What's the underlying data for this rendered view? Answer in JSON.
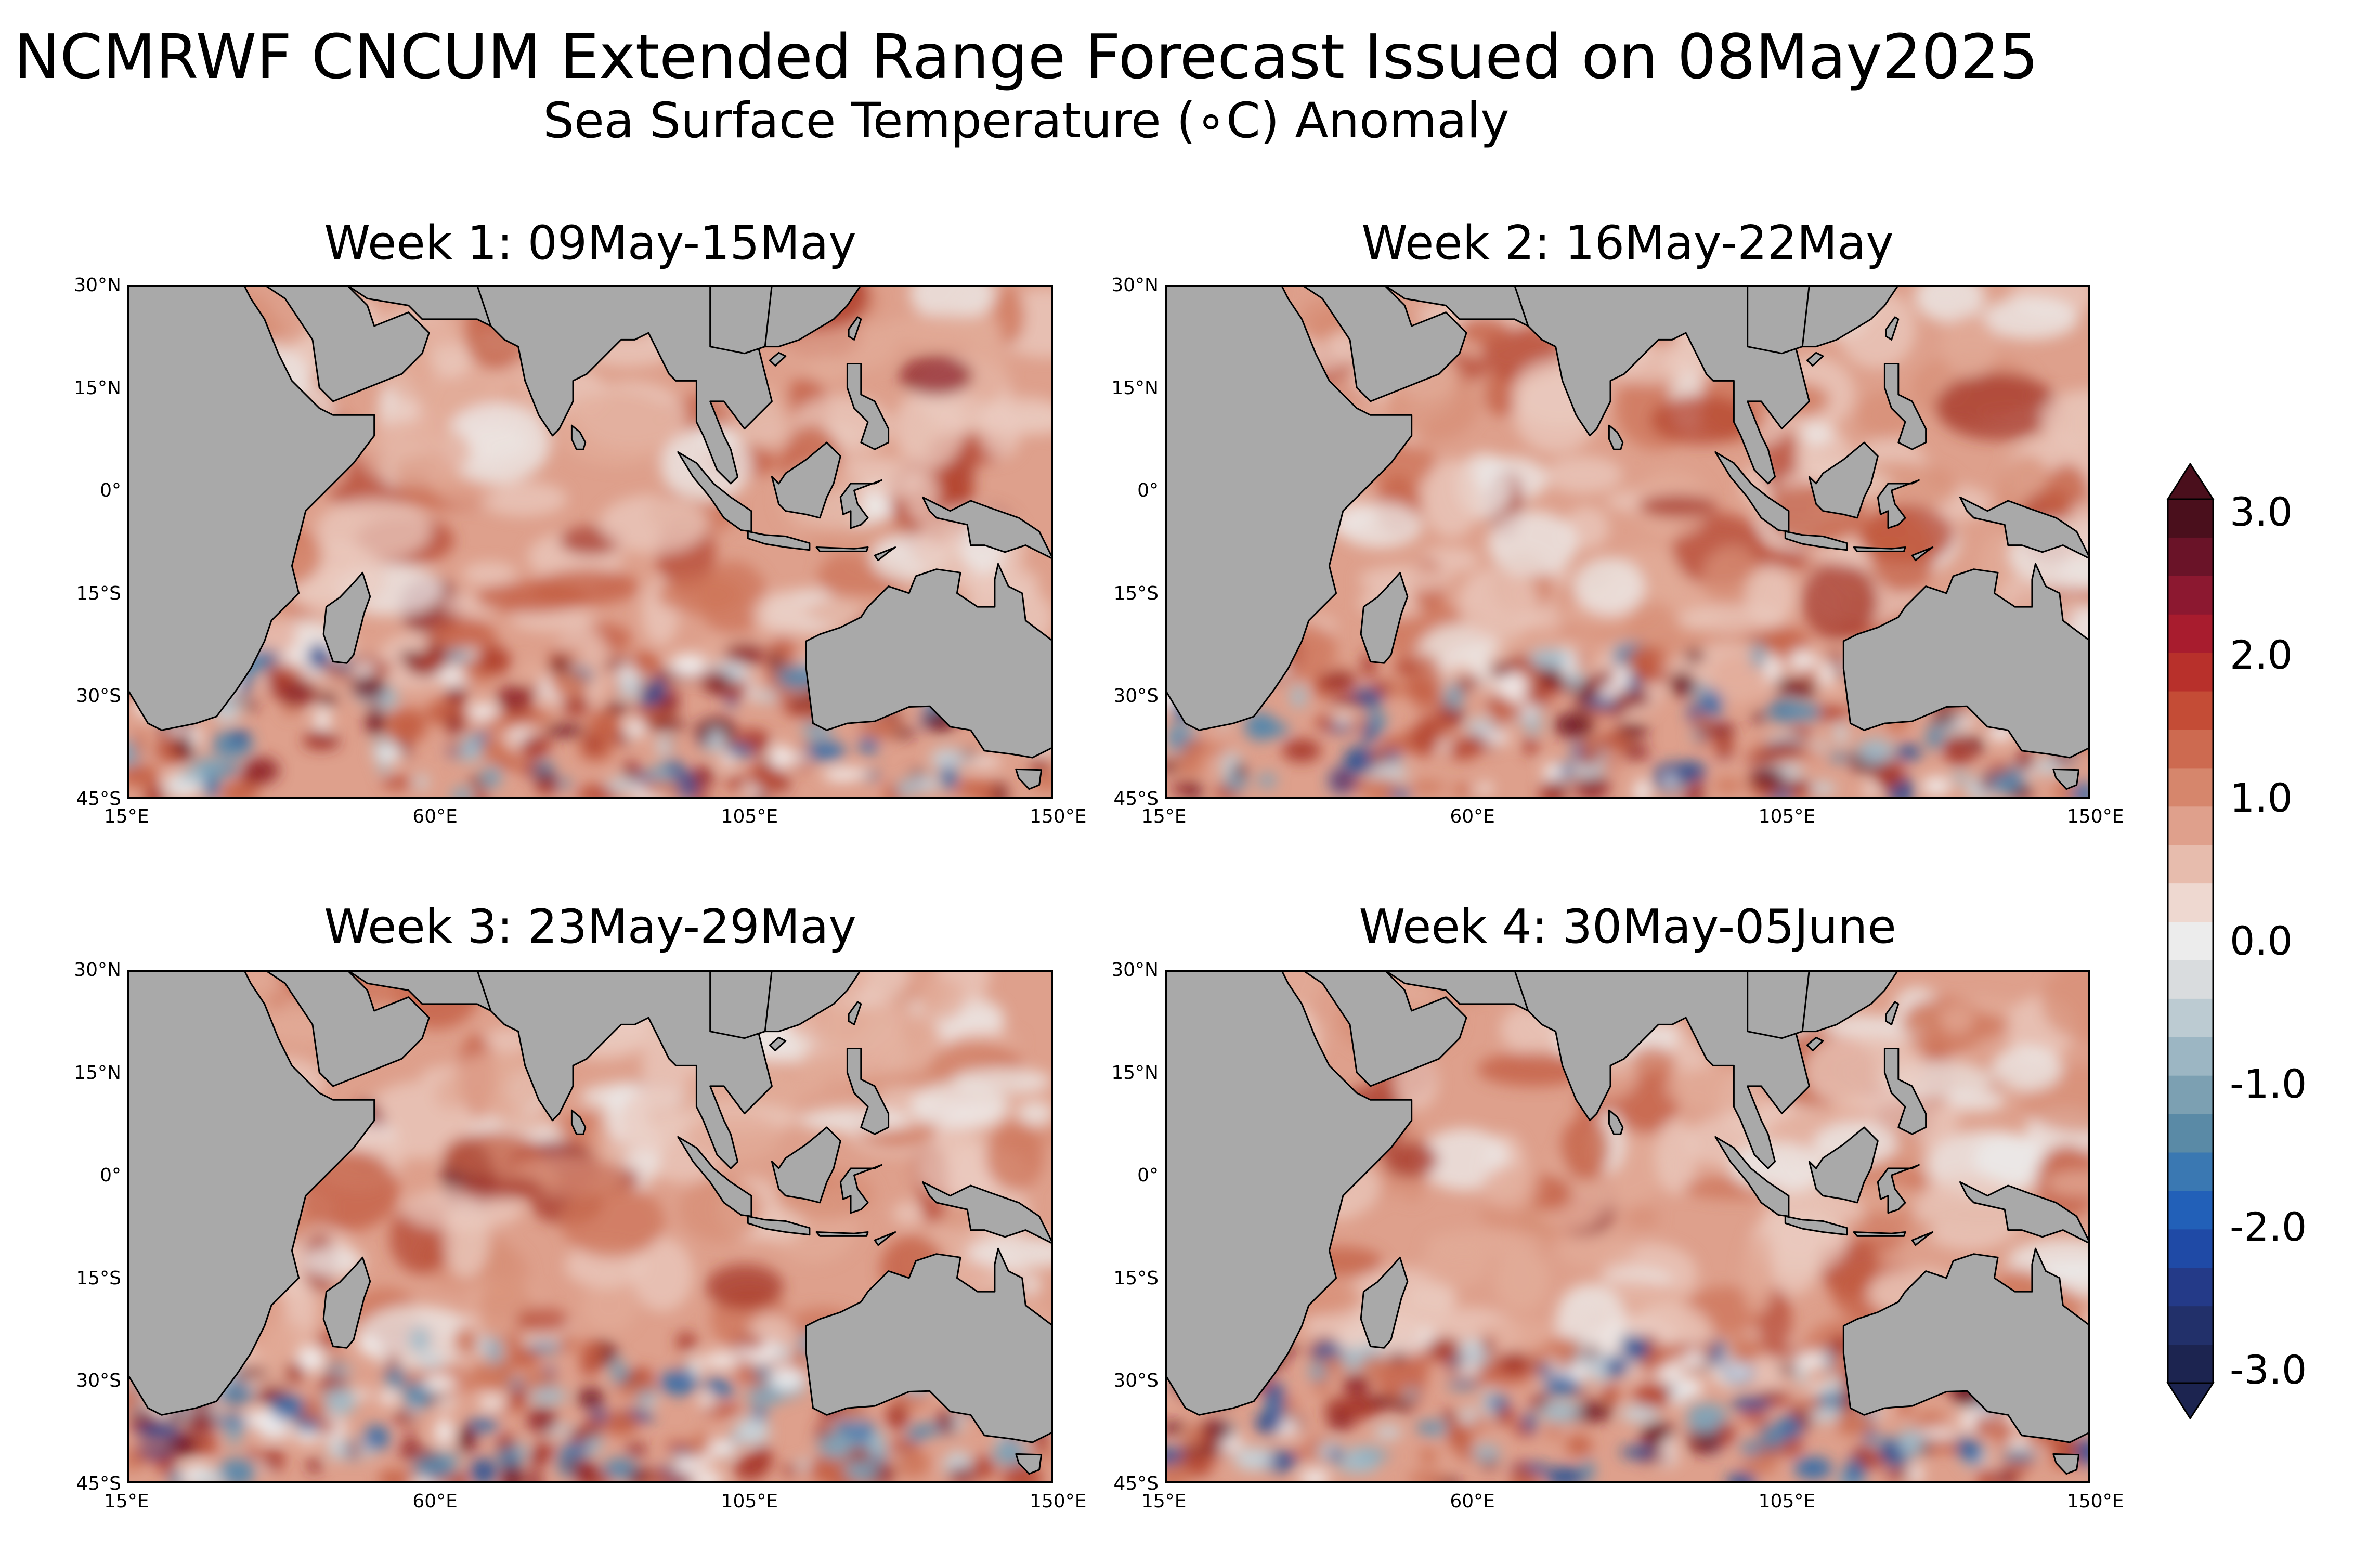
{
  "header": {
    "title": "NCMRWF CNCUM Extended Range Forecast Issued on 08May2025",
    "subtitle": "Sea Surface Temperature (∘C) Anomaly"
  },
  "panels": [
    {
      "title": "Week 1: 09May-15May"
    },
    {
      "title": "Week 2: 16May-22May"
    },
    {
      "title": "Week 3: 23May-29May"
    },
    {
      "title": "Week 4: 30May-05June"
    }
  ],
  "axes": {
    "lat_ticks": [
      "30°N",
      "15°N",
      "0°",
      "15°S",
      "30°S",
      "45°S"
    ],
    "lon_ticks": [
      "15°E",
      "60°E",
      "105°E",
      "150°E"
    ]
  },
  "colorbar": {
    "labels": [
      "3.0",
      "2.0",
      "1.0",
      "0.0",
      "-1.0",
      "-2.0",
      "-3.0"
    ],
    "colors": [
      "#4a0f1c",
      "#6a1328",
      "#8c1830",
      "#a81c2e",
      "#b8302b",
      "#c44c36",
      "#cd6a50",
      "#d6866c",
      "#dfa08c",
      "#e7bcad",
      "#eed8d0",
      "#ececec",
      "#d9dcde",
      "#bccbd2",
      "#9cb6c3",
      "#7ca0b2",
      "#5a8aa6",
      "#3a78b2",
      "#2260b8",
      "#1f4aa6",
      "#243a88",
      "#22306a",
      "#1c2450"
    ],
    "land_color": "#a9a9a9"
  }
}
